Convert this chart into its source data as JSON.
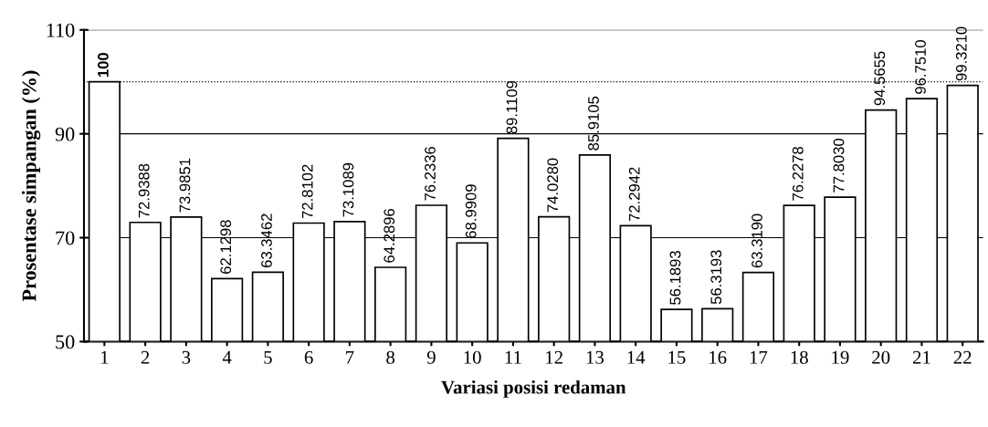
{
  "chart_data": {
    "type": "bar",
    "xlabel": "Variasi posisi redaman",
    "ylabel": "Prosentase simpangan (%)",
    "categories": [
      "1",
      "2",
      "3",
      "4",
      "5",
      "6",
      "7",
      "8",
      "9",
      "10",
      "11",
      "12",
      "13",
      "14",
      "15",
      "16",
      "17",
      "18",
      "19",
      "20",
      "21",
      "22"
    ],
    "values": [
      100,
      72.9388,
      73.9851,
      62.1298,
      63.3462,
      72.8102,
      73.1089,
      64.2896,
      76.2336,
      68.9909,
      89.1109,
      74.028,
      85.9105,
      72.2942,
      56.1893,
      56.3193,
      63.319,
      76.2278,
      77.803,
      94.5655,
      96.751,
      99.321
    ],
    "value_labels": [
      "100",
      "72.9388",
      "73.9851",
      "62.1298",
      "63.3462",
      "72.8102",
      "73.1089",
      "64.2896",
      "76.2336",
      "68.9909",
      "89.1109",
      "74.0280",
      "85.9105",
      "72.2942",
      "56.1893",
      "56.3193",
      "63.3190",
      "76.2278",
      "77.8030",
      "94.5655",
      "96.7510",
      "99.3210"
    ],
    "color": "#ffffff",
    "ylim": [
      50,
      110
    ],
    "yticks": [
      50,
      70,
      90,
      110
    ],
    "grid": "y",
    "ref_lines": [
      {
        "axis": "y",
        "value": 100,
        "line_style": "dotted"
      }
    ]
  }
}
